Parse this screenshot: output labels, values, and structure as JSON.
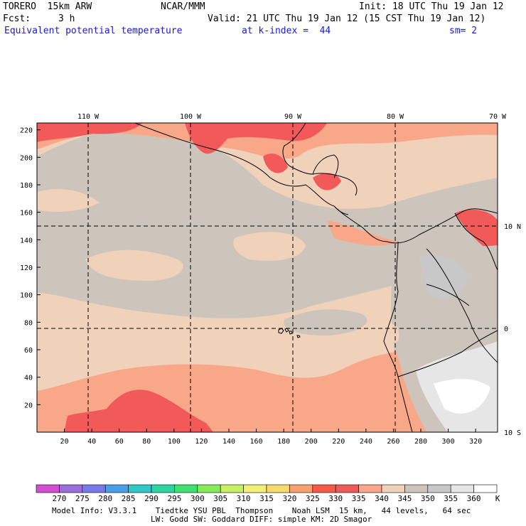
{
  "header": {
    "model": "TORERO  15km ARW",
    "center": "NCAR/MMM",
    "init": "Init: 18 UTC Thu 19 Jan 12",
    "fcst_label": "Fcst:",
    "fcst_value": "3 h",
    "valid": "Valid: 21 UTC Thu 19 Jan 12 (15 CST Thu 19 Jan 12)",
    "field": "Equivalent potential temperature",
    "level": "at k-index =  44",
    "smooth": "sm= 2"
  },
  "map": {
    "lon_labels": [
      "110 W",
      "100 W",
      "90 W",
      "80 W",
      "70 W"
    ],
    "lat_labels": [
      "10 N",
      "0",
      "10 S"
    ],
    "y_ticks": [
      "220",
      "200",
      "180",
      "160",
      "140",
      "120",
      "100",
      "80",
      "60",
      "40",
      "20"
    ],
    "x_ticks": [
      "20",
      "40",
      "60",
      "80",
      "100",
      "120",
      "140",
      "160",
      "180",
      "200",
      "220",
      "240",
      "260",
      "280",
      "300",
      "320"
    ]
  },
  "colorbar": {
    "unit": "K",
    "labels": [
      "270",
      "275",
      "280",
      "285",
      "290",
      "295",
      "300",
      "305",
      "310",
      "315",
      "320",
      "325",
      "330",
      "335",
      "340",
      "345",
      "350",
      "355",
      "360"
    ],
    "colors": [
      "#d050d0",
      "#9b6ed8",
      "#7a7ae6",
      "#4b9fe6",
      "#2ec8c8",
      "#2ad6a0",
      "#3ee070",
      "#86ea5a",
      "#c8f060",
      "#f0f078",
      "#f8d870",
      "#f8a070",
      "#f85a4a",
      "#f25a5a",
      "#f8a888",
      "#f0d2ba",
      "#cdc4bc",
      "#c8c8c8",
      "#e6e6e6",
      "#ffffff"
    ]
  },
  "footer": {
    "line1": "Model Info: V3.3.1    Tiedtke YSU PBL  Thompson    Noah LSM  15 km,   44 levels,   64 sec",
    "line2": "LW: Godd SW: Goddard DIFF: simple KM: 2D Smagor"
  }
}
